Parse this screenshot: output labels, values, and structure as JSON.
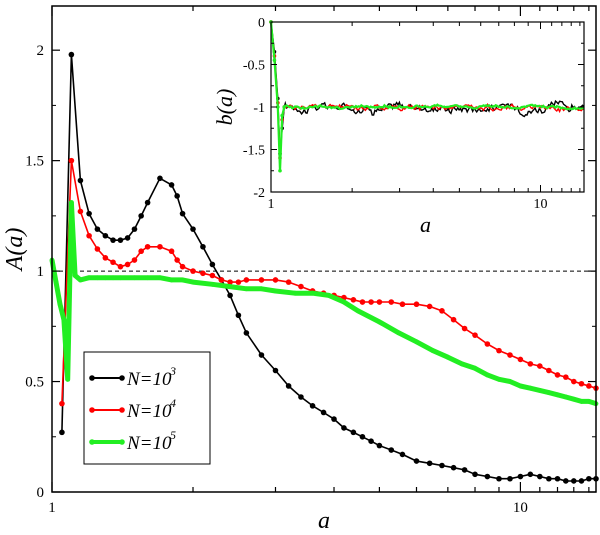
{
  "chart_data": [
    {
      "type": "line",
      "ylabel": "A(a)",
      "xlabel": "a",
      "xscale": "log",
      "xlim": [
        1,
        14.5
      ],
      "ylim": [
        0,
        2.2
      ],
      "xticks": [
        {
          "value": 1,
          "label": "1"
        },
        {
          "value": 10,
          "label": "10"
        }
      ],
      "yticks": [
        {
          "value": 0,
          "label": "0"
        },
        {
          "value": 0.5,
          "label": "0.5"
        },
        {
          "value": 1,
          "label": "1"
        },
        {
          "value": 1.5,
          "label": "1.5"
        },
        {
          "value": 2,
          "label": "2"
        }
      ],
      "reference_line": {
        "y": 1,
        "style": "dashed"
      },
      "legend": {
        "position": "bottom-left"
      },
      "series": [
        {
          "name": "N=10",
          "exponent": "3",
          "color": "#000000",
          "x": [
            1.05,
            1.1,
            1.15,
            1.2,
            1.25,
            1.3,
            1.35,
            1.4,
            1.45,
            1.5,
            1.55,
            1.6,
            1.7,
            1.8,
            1.85,
            1.9,
            2.0,
            2.1,
            2.2,
            2.3,
            2.4,
            2.5,
            2.6,
            2.8,
            3.0,
            3.2,
            3.4,
            3.6,
            3.8,
            4.0,
            4.2,
            4.4,
            4.6,
            4.8,
            5.0,
            5.3,
            5.6,
            6.0,
            6.4,
            6.8,
            7.2,
            7.6,
            8.0,
            8.5,
            9.0,
            9.5,
            10.0,
            10.5,
            11.0,
            11.5,
            12.0,
            12.5,
            13.0,
            13.5,
            14.0,
            14.5
          ],
          "y": [
            0.27,
            1.98,
            1.41,
            1.26,
            1.19,
            1.16,
            1.14,
            1.14,
            1.15,
            1.19,
            1.25,
            1.31,
            1.42,
            1.39,
            1.34,
            1.26,
            1.19,
            1.11,
            1.03,
            0.96,
            0.89,
            0.8,
            0.72,
            0.62,
            0.55,
            0.48,
            0.43,
            0.39,
            0.36,
            0.33,
            0.29,
            0.27,
            0.25,
            0.23,
            0.21,
            0.19,
            0.17,
            0.14,
            0.13,
            0.12,
            0.11,
            0.1,
            0.08,
            0.07,
            0.06,
            0.06,
            0.07,
            0.08,
            0.07,
            0.06,
            0.06,
            0.05,
            0.05,
            0.05,
            0.06,
            0.06
          ]
        },
        {
          "name": "N=10",
          "exponent": "4",
          "color": "#ff0000",
          "x": [
            1.05,
            1.1,
            1.15,
            1.2,
            1.25,
            1.3,
            1.35,
            1.4,
            1.45,
            1.5,
            1.55,
            1.6,
            1.7,
            1.8,
            1.85,
            1.9,
            2.0,
            2.1,
            2.2,
            2.3,
            2.4,
            2.5,
            2.6,
            2.8,
            3.0,
            3.2,
            3.4,
            3.6,
            3.8,
            4.0,
            4.2,
            4.4,
            4.6,
            4.8,
            5.0,
            5.3,
            5.6,
            6.0,
            6.4,
            6.8,
            7.2,
            7.6,
            8.0,
            8.5,
            9.0,
            9.5,
            10.0,
            10.5,
            11.0,
            11.5,
            12.0,
            12.5,
            13.0,
            13.5,
            14.0,
            14.5
          ],
          "y": [
            0.4,
            1.5,
            1.27,
            1.16,
            1.1,
            1.06,
            1.04,
            1.02,
            1.03,
            1.05,
            1.09,
            1.11,
            1.11,
            1.09,
            1.05,
            1.02,
            1.0,
            0.99,
            0.98,
            0.96,
            0.95,
            0.95,
            0.96,
            0.96,
            0.96,
            0.95,
            0.93,
            0.91,
            0.9,
            0.89,
            0.88,
            0.87,
            0.86,
            0.86,
            0.86,
            0.86,
            0.85,
            0.85,
            0.84,
            0.82,
            0.78,
            0.74,
            0.71,
            0.67,
            0.64,
            0.62,
            0.6,
            0.58,
            0.57,
            0.55,
            0.53,
            0.52,
            0.5,
            0.49,
            0.48,
            0.47
          ]
        },
        {
          "name": "N=10",
          "exponent": "5",
          "color": "#22ee22",
          "x": [
            1.0,
            1.02,
            1.04,
            1.06,
            1.08,
            1.1,
            1.12,
            1.15,
            1.2,
            1.25,
            1.3,
            1.35,
            1.4,
            1.5,
            1.6,
            1.7,
            1.8,
            1.9,
            2.0,
            2.2,
            2.4,
            2.6,
            2.8,
            3.0,
            3.3,
            3.6,
            3.9,
            4.2,
            4.5,
            5.0,
            5.5,
            6.0,
            6.5,
            7.0,
            7.5,
            8.0,
            8.5,
            9.0,
            9.5,
            10.0,
            10.5,
            11.0,
            11.5,
            12.0,
            12.5,
            13.0,
            13.5,
            14.0,
            14.5
          ],
          "y": [
            1.05,
            0.95,
            0.85,
            0.78,
            0.51,
            1.31,
            0.98,
            0.96,
            0.97,
            0.97,
            0.97,
            0.97,
            0.97,
            0.97,
            0.97,
            0.97,
            0.96,
            0.96,
            0.95,
            0.94,
            0.93,
            0.92,
            0.92,
            0.91,
            0.9,
            0.9,
            0.89,
            0.86,
            0.82,
            0.77,
            0.72,
            0.68,
            0.64,
            0.61,
            0.58,
            0.56,
            0.53,
            0.51,
            0.5,
            0.48,
            0.47,
            0.46,
            0.45,
            0.44,
            0.43,
            0.42,
            0.41,
            0.41,
            0.4
          ]
        }
      ]
    },
    {
      "type": "line",
      "ylabel": "b(a)",
      "xlabel": "a",
      "xscale": "log",
      "xlim": [
        1,
        14.5
      ],
      "ylim": [
        -2,
        0
      ],
      "xticks": [
        {
          "value": 1,
          "label": "1"
        },
        {
          "value": 10,
          "label": "10"
        }
      ],
      "yticks": [
        {
          "value": 0,
          "label": "0"
        },
        {
          "value": -0.5,
          "label": "-0.5"
        },
        {
          "value": -1,
          "label": "-1"
        },
        {
          "value": -1.5,
          "label": "-1.5"
        },
        {
          "value": -2,
          "label": "-2"
        }
      ],
      "series": [
        {
          "name": "N=10^3",
          "color": "#000000",
          "level": -1.0,
          "noise": 0.06,
          "start_x": [
            1.0,
            1.03,
            1.06,
            1.08,
            1.1,
            1.12
          ],
          "start_y": [
            0.0,
            -0.35,
            -0.9,
            -1.55,
            -1.25,
            -1.0
          ]
        },
        {
          "name": "N=10^4",
          "color": "#ff0000",
          "level": -1.0,
          "noise": 0.035,
          "start_x": [
            1.0,
            1.03,
            1.06,
            1.08,
            1.1,
            1.12
          ],
          "start_y": [
            0.0,
            -0.4,
            -0.95,
            -1.6,
            -1.15,
            -1.0
          ]
        },
        {
          "name": "N=10^5",
          "color": "#22ee22",
          "level": -1.0,
          "noise": 0.02,
          "start_x": [
            1.0,
            1.03,
            1.06,
            1.08,
            1.1,
            1.12
          ],
          "start_y": [
            0.0,
            -0.45,
            -1.0,
            -1.75,
            -1.1,
            -1.0
          ]
        }
      ]
    }
  ]
}
